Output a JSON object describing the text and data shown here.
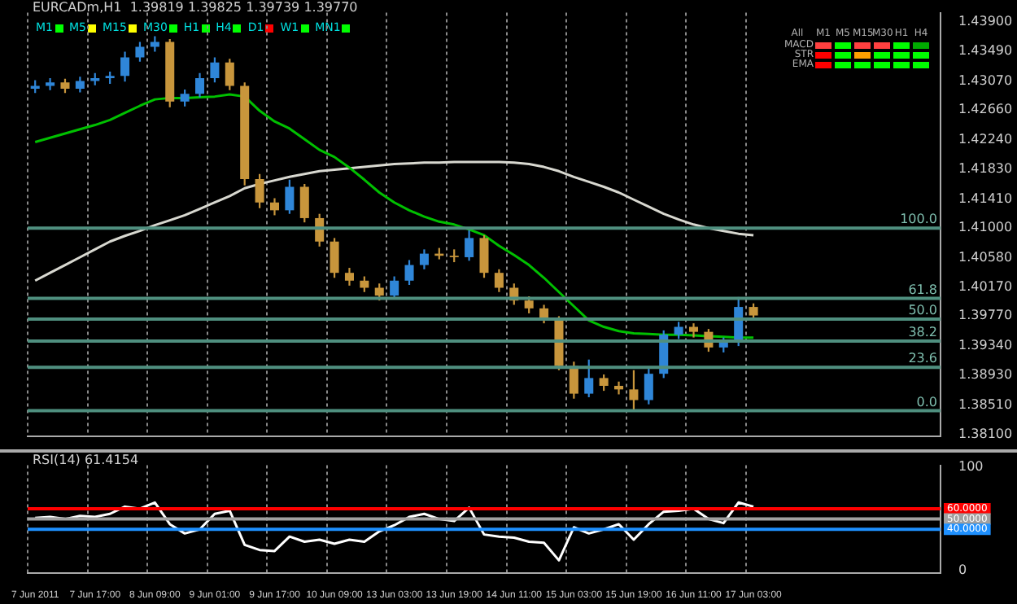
{
  "chart_data": [
    {
      "type": "candlestick",
      "title": "EURCADm,H1  1.39819 1.39825 1.39739 1.39770",
      "categories": [
        null,
        null,
        null,
        null,
        null,
        null,
        null,
        null,
        null,
        null,
        null,
        null,
        null,
        null,
        null,
        null,
        null,
        null,
        null,
        null,
        null,
        null,
        null,
        null,
        null,
        null,
        null,
        null,
        null,
        null,
        null,
        null,
        null,
        null,
        null,
        null,
        null,
        null,
        null,
        null,
        null,
        null,
        null,
        null,
        null,
        null,
        null,
        null,
        null,
        null,
        null,
        null,
        null,
        null,
        null,
        null,
        null,
        null,
        null,
        null,
        null
      ],
      "ohlc": [
        [
          1.4296,
          1.4308,
          1.429,
          1.43
        ],
        [
          1.43,
          1.4311,
          1.4294,
          1.4305
        ],
        [
          1.4305,
          1.431,
          1.429,
          1.4296
        ],
        [
          1.4296,
          1.4313,
          1.4291,
          1.4307
        ],
        [
          1.4307,
          1.4318,
          1.4301,
          1.4311
        ],
        [
          1.4311,
          1.432,
          1.4303,
          1.4314
        ],
        [
          1.4314,
          1.4348,
          1.4306,
          1.434
        ],
        [
          1.434,
          1.4362,
          1.4334,
          1.4355
        ],
        [
          1.4355,
          1.437,
          1.4348,
          1.4362
        ],
        [
          1.4362,
          1.4366,
          1.427,
          1.4278
        ],
        [
          1.4278,
          1.4295,
          1.4271,
          1.4289
        ],
        [
          1.4289,
          1.4318,
          1.4284,
          1.4311
        ],
        [
          1.4311,
          1.434,
          1.4305,
          1.4333
        ],
        [
          1.4333,
          1.4338,
          1.4294,
          1.43
        ],
        [
          1.43,
          1.4305,
          1.416,
          1.4169
        ],
        [
          1.4169,
          1.4176,
          1.4128,
          1.4136
        ],
        [
          1.4136,
          1.4142,
          1.4118,
          1.4125
        ],
        [
          1.4125,
          1.4168,
          1.412,
          1.4158
        ],
        [
          1.4158,
          1.4162,
          1.4108,
          1.4114
        ],
        [
          1.4114,
          1.412,
          1.4074,
          1.4081
        ],
        [
          1.4081,
          1.4086,
          1.403,
          1.4037
        ],
        [
          1.4037,
          1.4044,
          1.4019,
          1.4026
        ],
        [
          1.4026,
          1.4032,
          1.401,
          1.4016
        ],
        [
          1.4016,
          1.4022,
          1.3998,
          1.4005
        ],
        [
          1.4005,
          1.4032,
          1.4,
          1.4026
        ],
        [
          1.4026,
          1.4055,
          1.402,
          1.4048
        ],
        [
          1.4048,
          1.407,
          1.4042,
          1.4064
        ],
        [
          1.4064,
          1.4072,
          1.4056,
          1.4061
        ],
        [
          1.4061,
          1.407,
          1.4052,
          1.4059
        ],
        [
          1.4059,
          1.4097,
          1.4054,
          1.4086
        ],
        [
          1.4086,
          1.409,
          1.403,
          1.4037
        ],
        [
          1.4037,
          1.4042,
          1.401,
          1.4016
        ],
        [
          1.4016,
          1.4022,
          1.3992,
          1.3998
        ],
        [
          1.3998,
          1.4004,
          1.398,
          1.3987
        ],
        [
          1.3987,
          1.3992,
          1.3966,
          1.3972
        ],
        [
          1.3972,
          1.3976,
          1.39,
          1.3906
        ],
        [
          1.3906,
          1.3912,
          1.386,
          1.3867
        ],
        [
          1.3867,
          1.3915,
          1.3862,
          1.3889
        ],
        [
          1.3889,
          1.3894,
          1.3871,
          1.3878
        ],
        [
          1.3878,
          1.3884,
          1.3866,
          1.3873
        ],
        [
          1.3873,
          1.39,
          1.3843,
          1.3858
        ],
        [
          1.3858,
          1.3902,
          1.3852,
          1.3895
        ],
        [
          1.3895,
          1.3956,
          1.3889,
          1.395
        ],
        [
          1.395,
          1.3968,
          1.3944,
          1.3961
        ],
        [
          1.3961,
          1.3966,
          1.3946,
          1.3954
        ],
        [
          1.3954,
          1.3958,
          1.3926,
          1.3932
        ],
        [
          1.3932,
          1.3946,
          1.3925,
          1.3939
        ],
        [
          1.3939,
          1.4003,
          1.3934,
          1.3989
        ],
        [
          1.3989,
          1.3994,
          1.397,
          1.3977
        ],
        null,
        null,
        null,
        null,
        null,
        null,
        null,
        null,
        null,
        null,
        null,
        null
      ],
      "series": [
        {
          "type": "line",
          "color": "#00c000",
          "values": [
            1.4221,
            1.4227,
            1.4233,
            1.4239,
            1.4245,
            1.4252,
            1.4262,
            1.4272,
            1.4281,
            1.4283,
            1.4283,
            1.4284,
            1.4285,
            1.4288,
            1.4285,
            1.4265,
            1.425,
            1.424,
            1.4225,
            1.421,
            1.42,
            1.4185,
            1.4168,
            1.415,
            1.4136,
            1.4125,
            1.4116,
            1.4109,
            1.4105,
            1.4098,
            1.409,
            1.4075,
            1.4062,
            1.4048,
            1.403,
            1.401,
            1.399,
            1.397,
            1.3961,
            1.3955,
            1.3952,
            1.3951,
            1.395,
            1.395,
            1.3949,
            1.3948,
            1.3947,
            1.3946,
            1.3946,
            null,
            null,
            null,
            null,
            null,
            null,
            null,
            null,
            null,
            null,
            null,
            null
          ]
        },
        {
          "type": "line",
          "color": "#d8d8d0",
          "values": [
            1.4026,
            1.4037,
            1.4048,
            1.4059,
            1.407,
            1.4081,
            1.4089,
            1.4096,
            1.4104,
            1.4111,
            1.4118,
            1.4127,
            1.4136,
            1.4145,
            1.4156,
            1.4162,
            1.4167,
            1.4172,
            1.4176,
            1.418,
            1.4182,
            1.4184,
            1.4186,
            1.4188,
            1.419,
            1.4191,
            1.4192,
            1.4192,
            1.4193,
            1.4193,
            1.4193,
            1.4193,
            1.4192,
            1.419,
            1.4186,
            1.418,
            1.4172,
            1.4165,
            1.4158,
            1.415,
            1.414,
            1.413,
            1.412,
            1.4112,
            1.4105,
            1.41,
            1.4096,
            1.4092,
            1.409,
            null,
            null,
            null,
            null,
            null,
            null,
            null,
            null,
            null,
            null,
            null,
            null
          ]
        }
      ],
      "ylim": [
        1.3807,
        1.4403
      ],
      "yticks": [
        {
          "value": 1.439,
          "label": "1.43900"
        },
        {
          "value": 1.4349,
          "label": "1.43490"
        },
        {
          "value": 1.4307,
          "label": "1.43070"
        },
        {
          "value": 1.4266,
          "label": "1.42660"
        },
        {
          "value": 1.4224,
          "label": "1.42240"
        },
        {
          "value": 1.4183,
          "label": "1.41830"
        },
        {
          "value": 1.4141,
          "label": "1.41410"
        },
        {
          "value": 1.41,
          "label": "1.41000"
        },
        {
          "value": 1.4058,
          "label": "1.40580"
        },
        {
          "value": 1.4017,
          "label": "1.40170"
        },
        {
          "value": 1.3977,
          "label": "1.39770"
        },
        {
          "value": 1.3934,
          "label": "1.39340"
        },
        {
          "value": 1.3893,
          "label": "1.38930"
        },
        {
          "value": 1.3851,
          "label": "1.38510"
        },
        {
          "value": 1.381,
          "label": "1.38100"
        }
      ],
      "ref_lines": [
        {
          "axis": "y",
          "value": 1.41,
          "color": "#4f8f7f"
        },
        {
          "axis": "y",
          "value": 1.4001,
          "color": "#4f8f7f"
        },
        {
          "axis": "y",
          "value": 1.3972,
          "color": "#4f8f7f"
        },
        {
          "axis": "y",
          "value": 1.3941,
          "color": "#4f8f7f"
        },
        {
          "axis": "y",
          "value": 1.3904,
          "color": "#4f8f7f"
        },
        {
          "axis": "y",
          "value": 1.3843,
          "color": "#4f8f7f"
        }
      ],
      "grid": "x",
      "tick_labels": "y",
      "annotations": [
        "M1",
        "M5",
        "M15",
        "M30",
        "H1",
        "H4",
        "D1",
        "W1",
        "MN1",
        "All",
        "M1",
        "M5",
        "M15",
        "M30",
        "H1",
        "H4",
        "MACD",
        "STR",
        "EMA",
        {
          "text": "100.0",
          "y": 1.41
        },
        {
          "text": "61.8",
          "y": 1.4001
        },
        {
          "text": "50.0",
          "y": 1.3972
        },
        {
          "text": "38.2",
          "y": 1.3941
        },
        {
          "text": "23.6",
          "y": 1.3904
        },
        {
          "text": "0.0",
          "y": 1.3843
        }
      ]
    },
    {
      "type": "line",
      "title": "RSI(14) 61.4154",
      "categories": [
        "7 Jun 2011",
        null,
        null,
        null,
        "7 Jun 17:00",
        null,
        null,
        null,
        "8 Jun 09:00",
        null,
        null,
        null,
        "9 Jun 01:00",
        null,
        null,
        null,
        "9 Jun 17:00",
        null,
        null,
        null,
        "10 Jun 09:00",
        null,
        null,
        null,
        "13 Jun 03:00",
        null,
        null,
        null,
        "13 Jun 19:00",
        null,
        null,
        null,
        "14 Jun 11:00",
        null,
        null,
        null,
        "15 Jun 03:00",
        null,
        null,
        null,
        "15 Jun 19:00",
        null,
        null,
        null,
        "16 Jun 11:00",
        null,
        null,
        null,
        "17 Jun 03:00",
        null,
        null,
        null,
        null,
        null,
        null,
        null,
        null,
        null,
        null,
        null,
        null
      ],
      "series": [
        {
          "color": "#ffffff",
          "values": [
            51,
            52,
            50,
            53,
            52,
            55,
            62,
            60,
            66,
            45,
            36,
            40,
            55,
            58,
            25,
            20,
            19,
            33,
            28,
            30,
            26,
            30,
            28,
            38,
            44,
            52,
            55,
            50,
            48,
            61,
            35,
            33,
            32,
            28,
            27,
            10,
            42,
            36,
            40,
            45,
            30,
            45,
            57,
            58,
            60,
            50,
            46,
            66,
            62,
            null,
            null,
            null,
            null,
            null,
            null,
            null,
            null,
            null,
            null,
            null,
            null
          ]
        }
      ],
      "ylim": [
        -2,
        102
      ],
      "yticks": [
        0,
        100
      ],
      "ref_lines": [
        {
          "axis": "y",
          "value": 60,
          "label": "60.0000",
          "color": "#ff0000"
        },
        {
          "axis": "y",
          "value": 50,
          "label": "50.0000",
          "color": "#a0a0a0"
        },
        {
          "axis": "y",
          "value": 40,
          "label": "40.0000",
          "color": "#1e90ff"
        }
      ],
      "grid": "x"
    }
  ]
}
